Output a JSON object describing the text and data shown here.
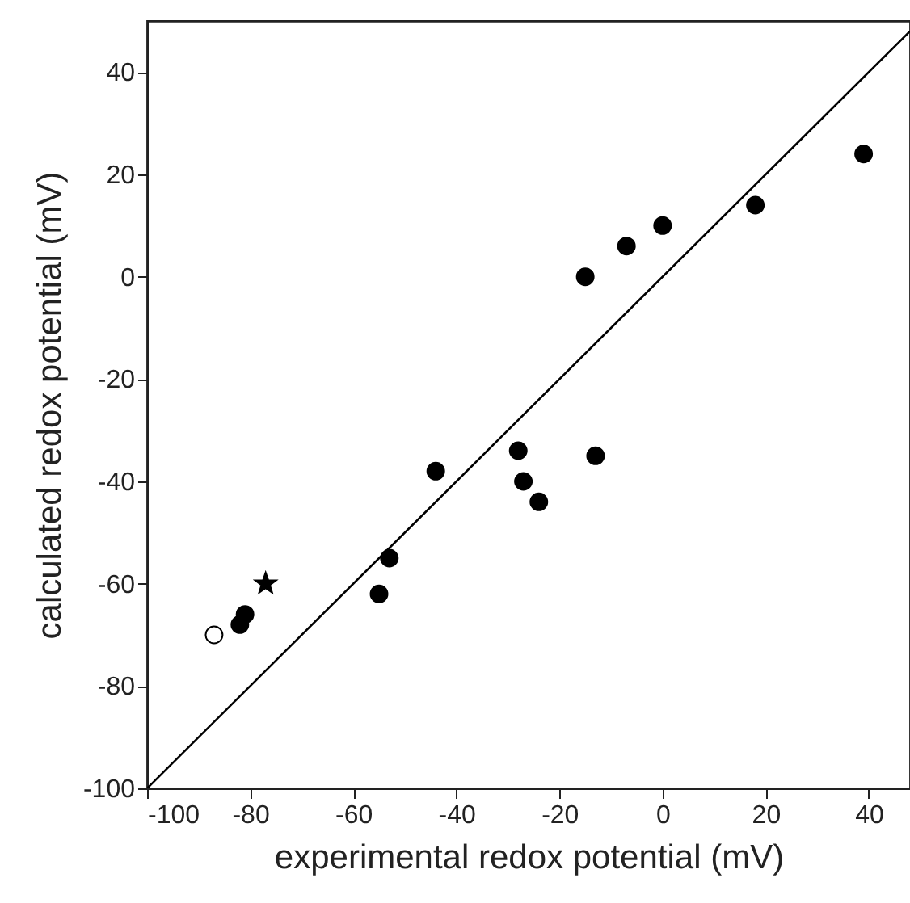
{
  "chart_data": {
    "type": "scatter",
    "xlabel": "experimental redox potential (mV)",
    "ylabel": "calculated redox potential (mV)",
    "xlim": [
      -100,
      48
    ],
    "ylim": [
      -100,
      50
    ],
    "xticks": [
      -100,
      -80,
      -60,
      -40,
      -20,
      0,
      20,
      40
    ],
    "yticks": [
      -100,
      -80,
      -60,
      -40,
      -20,
      0,
      20,
      40
    ],
    "grid": false,
    "series": [
      {
        "type": "line",
        "color": "#000000",
        "line_style": "solid",
        "marker": "none",
        "x": [
          -100,
          48
        ],
        "values": [
          -100,
          48
        ]
      },
      {
        "type": "scatter",
        "color": "#000000",
        "marker": "circle",
        "x": [
          -15,
          -7,
          0,
          18,
          39,
          -28,
          -13,
          -44,
          -27,
          -24,
          -53,
          -55,
          -81,
          -82
        ],
        "values": [
          0,
          6,
          10,
          14,
          24,
          -34,
          -35,
          -38,
          -40,
          -44,
          -55,
          -62,
          -66,
          -68
        ]
      },
      {
        "type": "scatter",
        "color": "#ffffff",
        "marker": "circle",
        "x": [
          -87
        ],
        "values": [
          -70
        ]
      },
      {
        "type": "scatter",
        "color": "#000000",
        "marker": "star",
        "x": [
          -77
        ],
        "values": [
          -60
        ]
      }
    ]
  }
}
